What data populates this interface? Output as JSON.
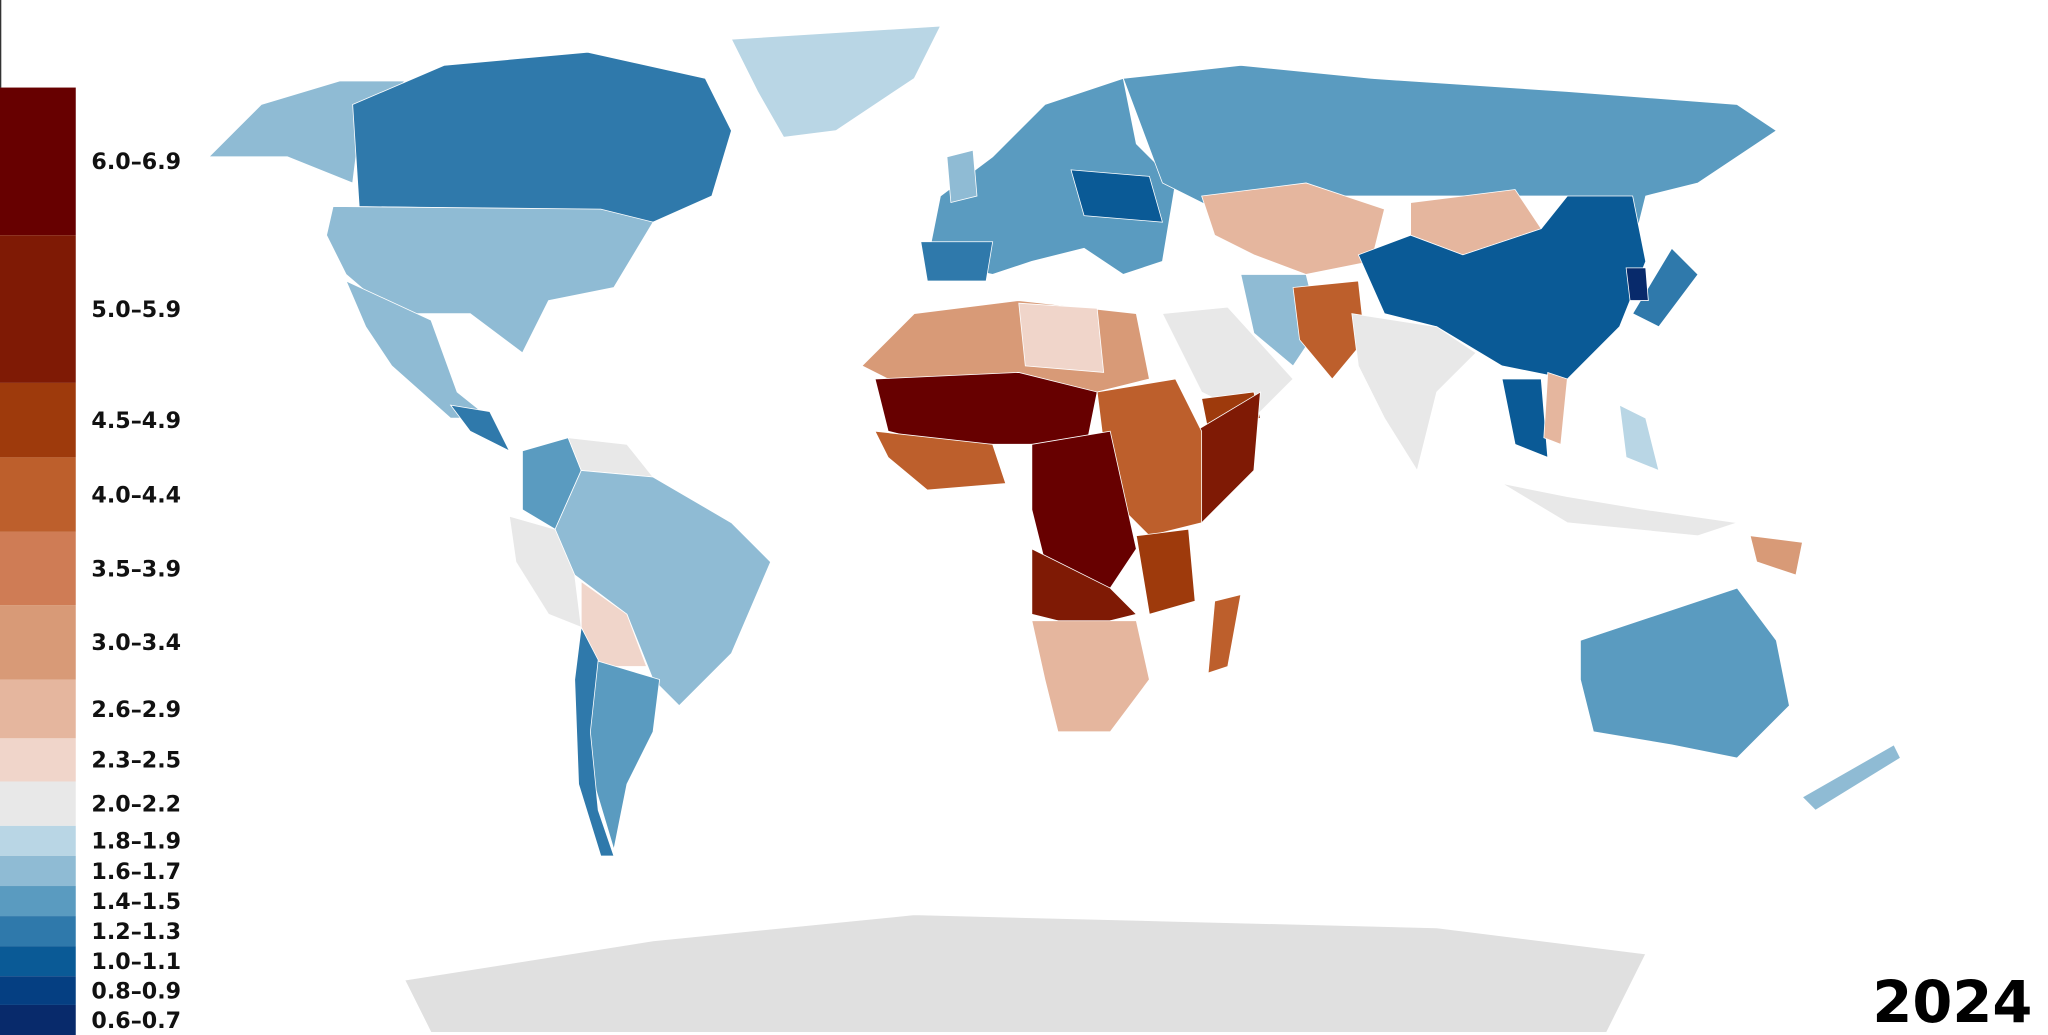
{
  "legend": {
    "items": [
      {
        "label": "6.0–6.9",
        "color": "#670000"
      },
      {
        "label": "5.0–5.9",
        "color": "#7f1a05"
      },
      {
        "label": "4.5–4.9",
        "color": "#9e3a0c"
      },
      {
        "label": "4.0–4.4",
        "color": "#bd5f2c"
      },
      {
        "label": "3.5–3.9",
        "color": "#cf7c55"
      },
      {
        "label": "3.0–3.4",
        "color": "#d89a77"
      },
      {
        "label": "2.6–2.9",
        "color": "#e5b69e"
      },
      {
        "label": "2.3–2.5",
        "color": "#f0d5ca"
      },
      {
        "label": "2.0–2.2",
        "color": "#e8e8e8"
      },
      {
        "label": "1.8–1.9",
        "color": "#b9d6e5"
      },
      {
        "label": "1.6–1.7",
        "color": "#8fbbd4"
      },
      {
        "label": "1.4–1.5",
        "color": "#5a9bc0"
      },
      {
        "label": "1.2–1.3",
        "color": "#2f79ab"
      },
      {
        "label": "1.0–1.1",
        "color": "#0a5a96"
      },
      {
        "label": "0.8–0.9",
        "color": "#053f82"
      },
      {
        "label": "0.6–0.7",
        "color": "#082a6b"
      }
    ]
  },
  "year": "2024"
}
